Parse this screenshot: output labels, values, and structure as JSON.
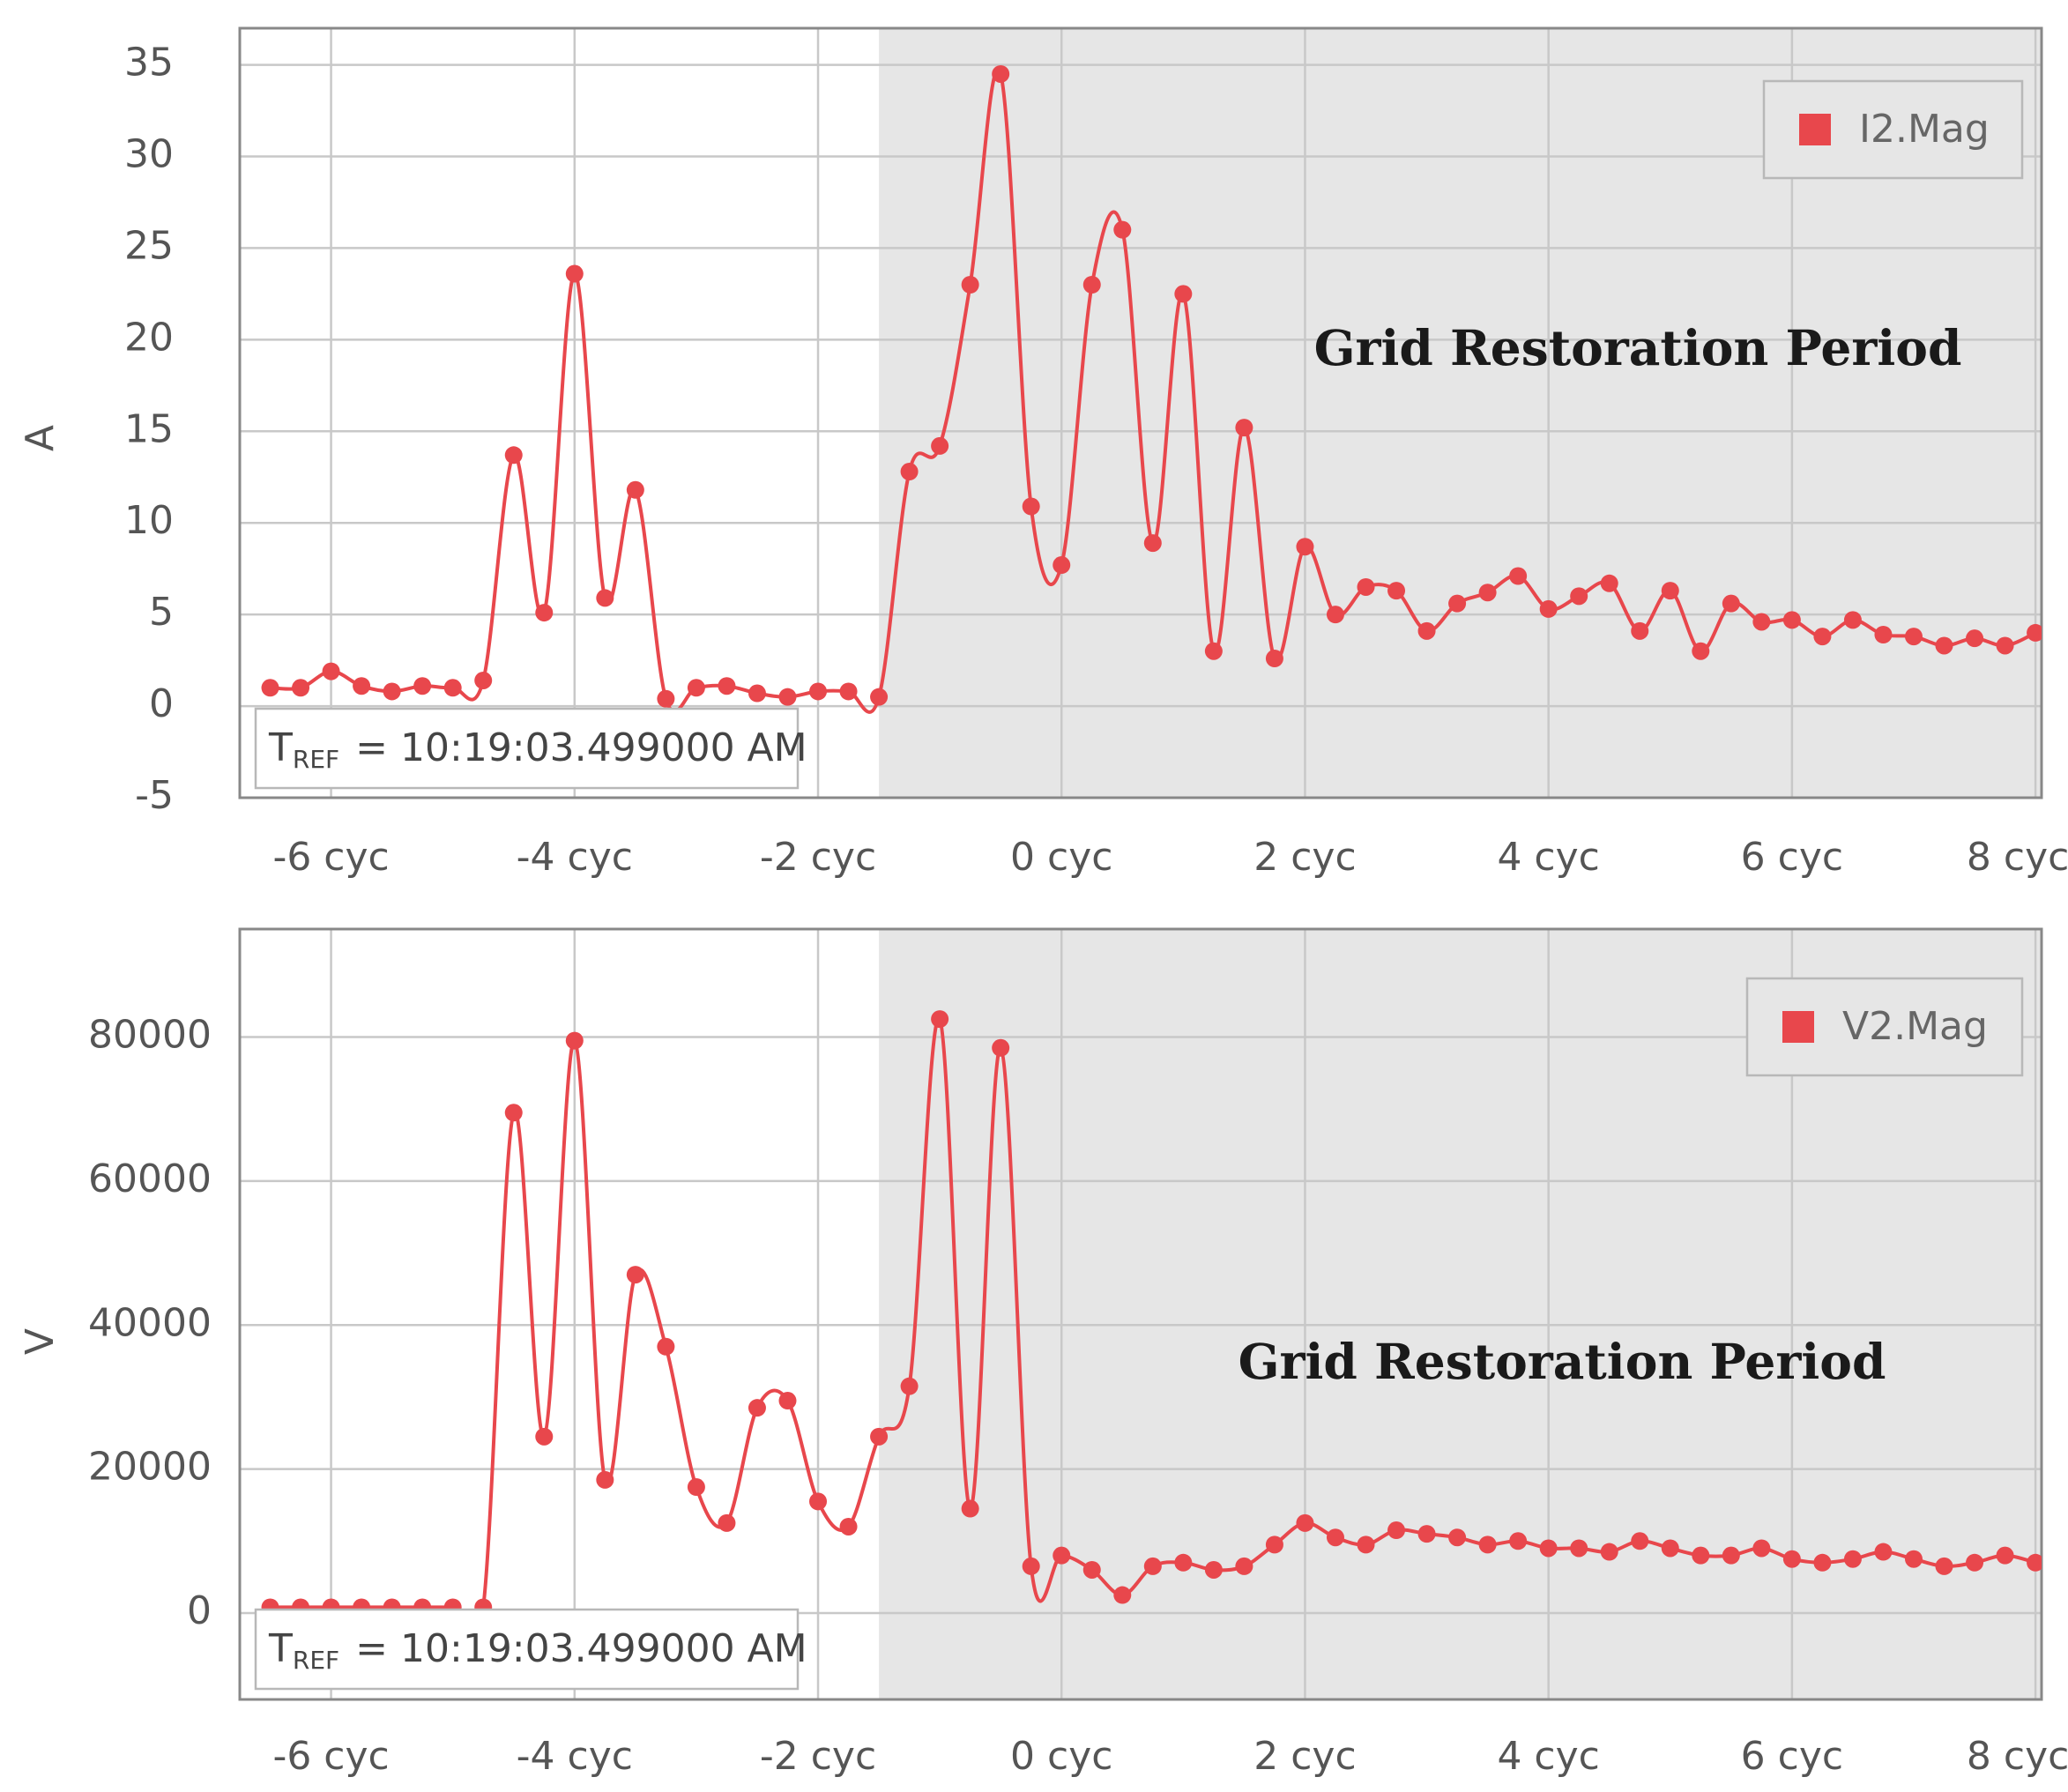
{
  "colors": {
    "series": "#e8474c",
    "shade": "#e6e6e6",
    "grid": "#c8c8c8",
    "axis": "#888888"
  },
  "chart_data": [
    {
      "type": "line",
      "ylabel": "A",
      "xlabel": "",
      "x_unit_label": "cyc",
      "xlim": [
        -6.75,
        8.05
      ],
      "ylim": [
        -5,
        37
      ],
      "x_ticks": [
        -6,
        -4,
        -2,
        0,
        2,
        4,
        6,
        8
      ],
      "x_tick_labels": [
        "-6 cyc",
        "-4 cyc",
        "-2 cyc",
        "0 cyc",
        "2 cyc",
        "4 cyc",
        "6 cyc",
        "8 cyc"
      ],
      "y_ticks": [
        -5,
        0,
        5,
        10,
        15,
        20,
        25,
        30,
        35
      ],
      "y_tick_labels": [
        "-5",
        "0",
        "5",
        "10",
        "15",
        "20",
        "25",
        "30",
        "35"
      ],
      "shaded_region": {
        "from": -1.5,
        "to": 8.05,
        "label": "Grid Restoration Period"
      },
      "legend": {
        "label": "I2.Mag",
        "position": "top-right"
      },
      "tref": {
        "prefix": "T",
        "subscript": "REF",
        "value": "= 10:19:03.499000 AM"
      },
      "series": [
        {
          "name": "I2.Mag",
          "x": [
            -6.5,
            -6.25,
            -6.0,
            -5.75,
            -5.5,
            -5.25,
            -5.0,
            -4.75,
            -4.5,
            -4.25,
            -4.0,
            -3.75,
            -3.5,
            -3.25,
            -3.0,
            -2.75,
            -2.5,
            -2.25,
            -2.0,
            -1.75,
            -1.5,
            -1.25,
            -1.0,
            -0.75,
            -0.5,
            -0.25,
            0.0,
            0.25,
            0.5,
            0.75,
            1.0,
            1.25,
            1.5,
            1.75,
            2.0,
            2.25,
            2.5,
            2.75,
            3.0,
            3.25,
            3.5,
            3.75,
            4.0,
            4.25,
            4.5,
            4.75,
            5.0,
            5.25,
            5.5,
            5.75,
            6.0,
            6.25,
            6.5,
            6.75,
            7.0,
            7.25,
            7.5,
            7.75,
            8.0
          ],
          "values": [
            1.0,
            1.0,
            1.9,
            1.1,
            0.8,
            1.1,
            1.0,
            1.4,
            13.7,
            5.1,
            23.6,
            5.9,
            11.8,
            0.4,
            1.0,
            1.1,
            0.7,
            0.5,
            0.8,
            0.8,
            0.5,
            12.8,
            14.2,
            23.0,
            34.5,
            10.9,
            7.7,
            23.0,
            26.0,
            8.9,
            22.5,
            3.0,
            15.2,
            2.6,
            8.7,
            5.0,
            6.5,
            6.3,
            4.1,
            5.6,
            6.2,
            7.1,
            5.3,
            6.0,
            6.7,
            4.1,
            6.3,
            3.0,
            5.6,
            4.6,
            4.7,
            3.8,
            4.7,
            3.9,
            3.8,
            3.3,
            3.7,
            3.3,
            4.0
          ]
        }
      ]
    },
    {
      "type": "line",
      "ylabel": "V",
      "xlabel": "",
      "x_unit_label": "cyc",
      "xlim": [
        -6.75,
        8.05
      ],
      "ylim": [
        -12000,
        95000
      ],
      "x_ticks": [
        -6,
        -4,
        -2,
        0,
        2,
        4,
        6,
        8
      ],
      "x_tick_labels": [
        "-6 cyc",
        "-4 cyc",
        "-2 cyc",
        "0 cyc",
        "2 cyc",
        "4 cyc",
        "6 cyc",
        "8 cyc"
      ],
      "y_ticks": [
        0,
        20000,
        40000,
        60000,
        80000
      ],
      "y_tick_labels": [
        "0",
        "20000",
        "40000",
        "60000",
        "80000"
      ],
      "shaded_region": {
        "from": -1.5,
        "to": 8.05,
        "label": "Grid Restoration Period"
      },
      "legend": {
        "label": "V2.Mag",
        "position": "top-right"
      },
      "tref": {
        "prefix": "T",
        "subscript": "REF",
        "value": "= 10:19:03.499000 AM"
      },
      "series": [
        {
          "name": "V2.Mag",
          "x": [
            -6.5,
            -6.25,
            -6.0,
            -5.75,
            -5.5,
            -5.25,
            -5.0,
            -4.75,
            -4.5,
            -4.25,
            -4.0,
            -3.75,
            -3.5,
            -3.25,
            -3.0,
            -2.75,
            -2.5,
            -2.25,
            -2.0,
            -1.75,
            -1.5,
            -1.25,
            -1.0,
            -0.75,
            -0.5,
            -0.25,
            0.0,
            0.25,
            0.5,
            0.75,
            1.0,
            1.25,
            1.5,
            1.75,
            2.0,
            2.25,
            2.5,
            2.75,
            3.0,
            3.25,
            3.5,
            3.75,
            4.0,
            4.25,
            4.5,
            4.75,
            5.0,
            5.25,
            5.5,
            5.75,
            6.0,
            6.25,
            6.5,
            6.75,
            7.0,
            7.25,
            7.5,
            7.75,
            8.0
          ],
          "values": [
            800,
            800,
            800,
            800,
            800,
            800,
            800,
            800,
            69500,
            24500,
            79500,
            18500,
            47000,
            37000,
            17500,
            12500,
            28500,
            29500,
            15500,
            12000,
            24500,
            31500,
            82500,
            14500,
            78500,
            6500,
            8000,
            6000,
            2500,
            6500,
            7000,
            6000,
            6500,
            9500,
            12500,
            10500,
            9500,
            11500,
            11000,
            10500,
            9500,
            10000,
            9000,
            9000,
            8500,
            10000,
            9000,
            8000,
            8000,
            9000,
            7500,
            7000,
            7500,
            8500,
            7500,
            6500,
            7000,
            8000,
            7000
          ]
        }
      ]
    }
  ]
}
